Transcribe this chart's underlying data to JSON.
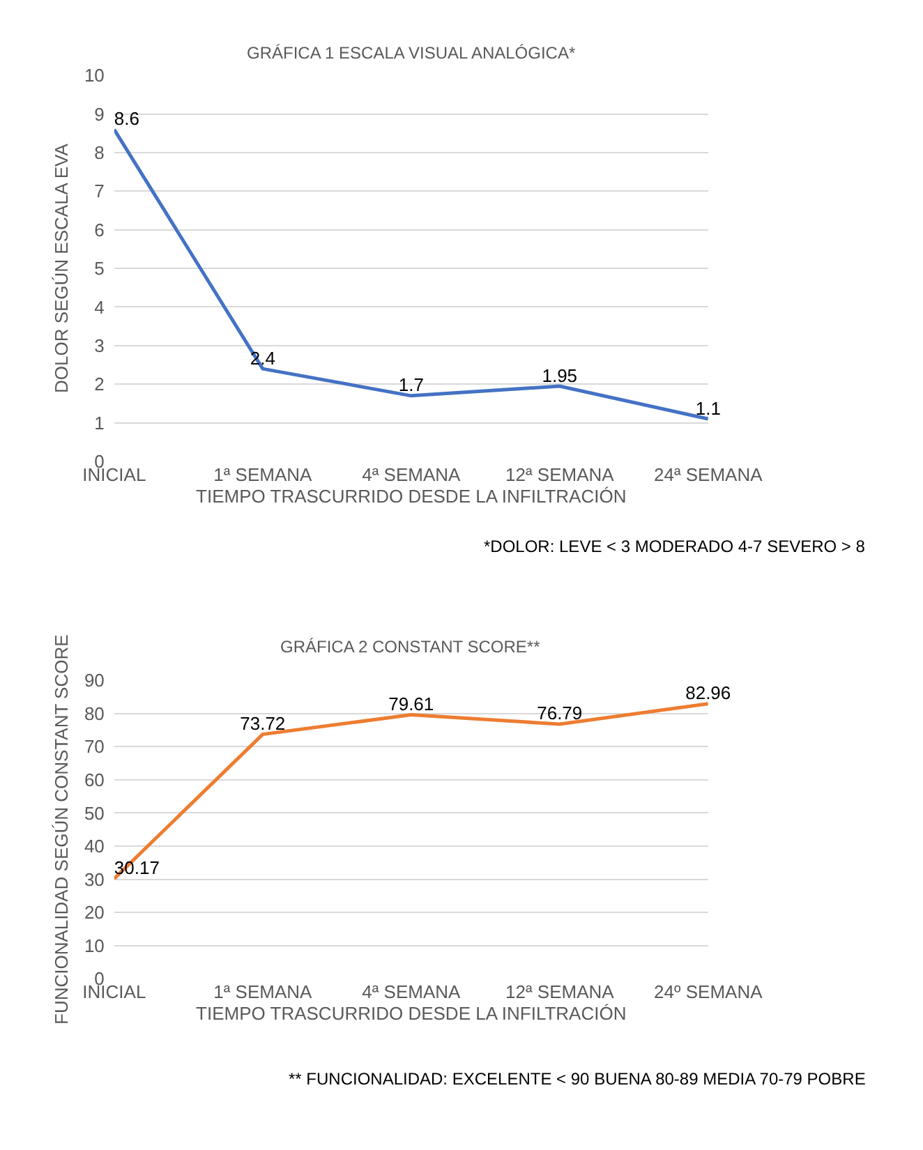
{
  "chart_data": [
    {
      "type": "line",
      "title": "GRÁFICA 1 ESCALA VISUAL ANALÓGICA*",
      "xlabel": "TIEMPO TRASCURRIDO DESDE LA INFILTRACIÓN",
      "ylabel": "DOLOR SEGÚN ESCALA EVA",
      "categories": [
        "INICIAL",
        "1ª SEMANA",
        "4ª SEMANA",
        "12ª SEMANA",
        "24ª SEMANA"
      ],
      "series": [
        {
          "color": "#4472c4",
          "values": [
            8.6,
            2.4,
            1.7,
            1.95,
            1.1
          ]
        }
      ],
      "ylim": [
        0,
        10
      ],
      "yticks": [
        0,
        1,
        2,
        3,
        4,
        5,
        6,
        7,
        8,
        9,
        10
      ],
      "grid": "y",
      "marker": "none",
      "data_labels": true,
      "annotations": [
        "*DOLOR: LEVE < 3 MODERADO 4-7 SEVERO > 8"
      ]
    },
    {
      "type": "line",
      "title": "GRÁFICA 2 CONSTANT SCORE**",
      "xlabel": "TIEMPO TRASCURRIDO DESDE LA INFILTRACIÓN",
      "ylabel": "FUNCIONALIDAD SEGÚN CONSTANT SCORE",
      "categories": [
        "INICIAL",
        "1ª SEMANA",
        "4ª SEMANA",
        "12ª SEMANA",
        "24º SEMANA"
      ],
      "series": [
        {
          "color": "#ed7d31",
          "values": [
            30.17,
            73.72,
            79.61,
            76.79,
            82.96
          ]
        }
      ],
      "ylim": [
        0,
        90
      ],
      "yticks": [
        0,
        10,
        20,
        30,
        40,
        50,
        60,
        70,
        80,
        90
      ],
      "grid": "y",
      "marker": "none",
      "data_labels": true,
      "annotations": [
        "** FUNCIONALIDAD: EXCELENTE < 90 BUENA 80-89 MEDIA 70-79 POBRE"
      ]
    }
  ]
}
